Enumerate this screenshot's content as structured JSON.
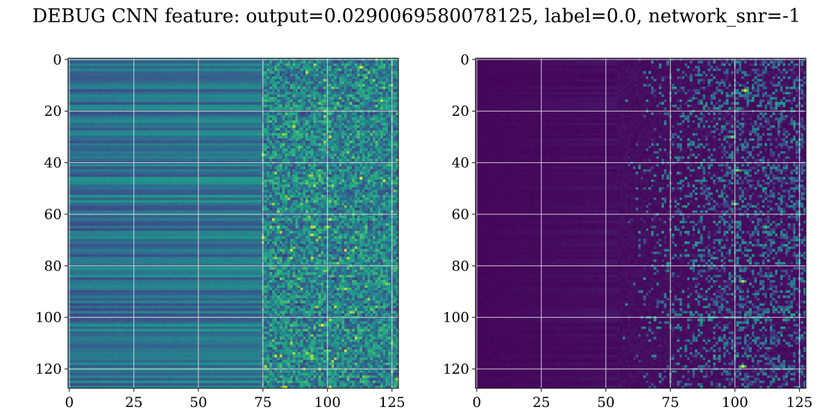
{
  "title": "DEBUG CNN feature: output=0.0290069580078125, label=0.0, network_snr=-1",
  "colormap": "viridis",
  "chart_data": [
    {
      "type": "heatmap",
      "title": "",
      "xlabel": "",
      "ylabel": "",
      "xlim": [
        0,
        127
      ],
      "ylim": [
        127,
        0
      ],
      "x_ticks": [
        0,
        25,
        50,
        75,
        100,
        125
      ],
      "y_ticks": [
        0,
        20,
        40,
        60,
        80,
        100,
        120
      ],
      "grid": true,
      "shape": [
        128,
        128
      ],
      "background_level": 0.3,
      "description_of_values": "columns 0-75 smooth horizontal bands (0.2-0.5); columns 75-127 noisy with bright spots (up to 1.0)",
      "hot_spots": [
        {
          "row": 3,
          "col": 113,
          "value": 0.95
        },
        {
          "row": 43,
          "col": 97,
          "value": 0.75
        },
        {
          "row": 62,
          "col": 101,
          "value": 0.9
        },
        {
          "row": 65,
          "col": 100,
          "value": 0.95
        },
        {
          "row": 68,
          "col": 94,
          "value": 0.95
        },
        {
          "row": 103,
          "col": 98,
          "value": 1.0
        },
        {
          "row": 58,
          "col": 84,
          "value": 0.7
        }
      ]
    },
    {
      "type": "heatmap",
      "title": "",
      "xlabel": "",
      "ylabel": "",
      "xlim": [
        0,
        127
      ],
      "ylim": [
        127,
        0
      ],
      "x_ticks": [
        0,
        25,
        50,
        75,
        100,
        125
      ],
      "y_ticks": [
        0,
        20,
        40,
        60,
        80,
        100,
        120
      ],
      "grid": true,
      "shape": [
        128,
        128
      ],
      "background_level": 0.02,
      "description_of_values": "columns 0-55 near zero (dark purple); columns 55-127 sparse horizontal streaks with bright spots",
      "hot_spots": [
        {
          "row": 12,
          "col": 104,
          "value": 0.95
        },
        {
          "row": 30,
          "col": 99,
          "value": 0.8
        },
        {
          "row": 43,
          "col": 101,
          "value": 0.8
        },
        {
          "row": 56,
          "col": 100,
          "value": 0.85
        },
        {
          "row": 65,
          "col": 112,
          "value": 0.7
        },
        {
          "row": 77,
          "col": 92,
          "value": 0.6
        },
        {
          "row": 86,
          "col": 103,
          "value": 0.9
        },
        {
          "row": 119,
          "col": 103,
          "value": 0.95
        }
      ]
    }
  ]
}
